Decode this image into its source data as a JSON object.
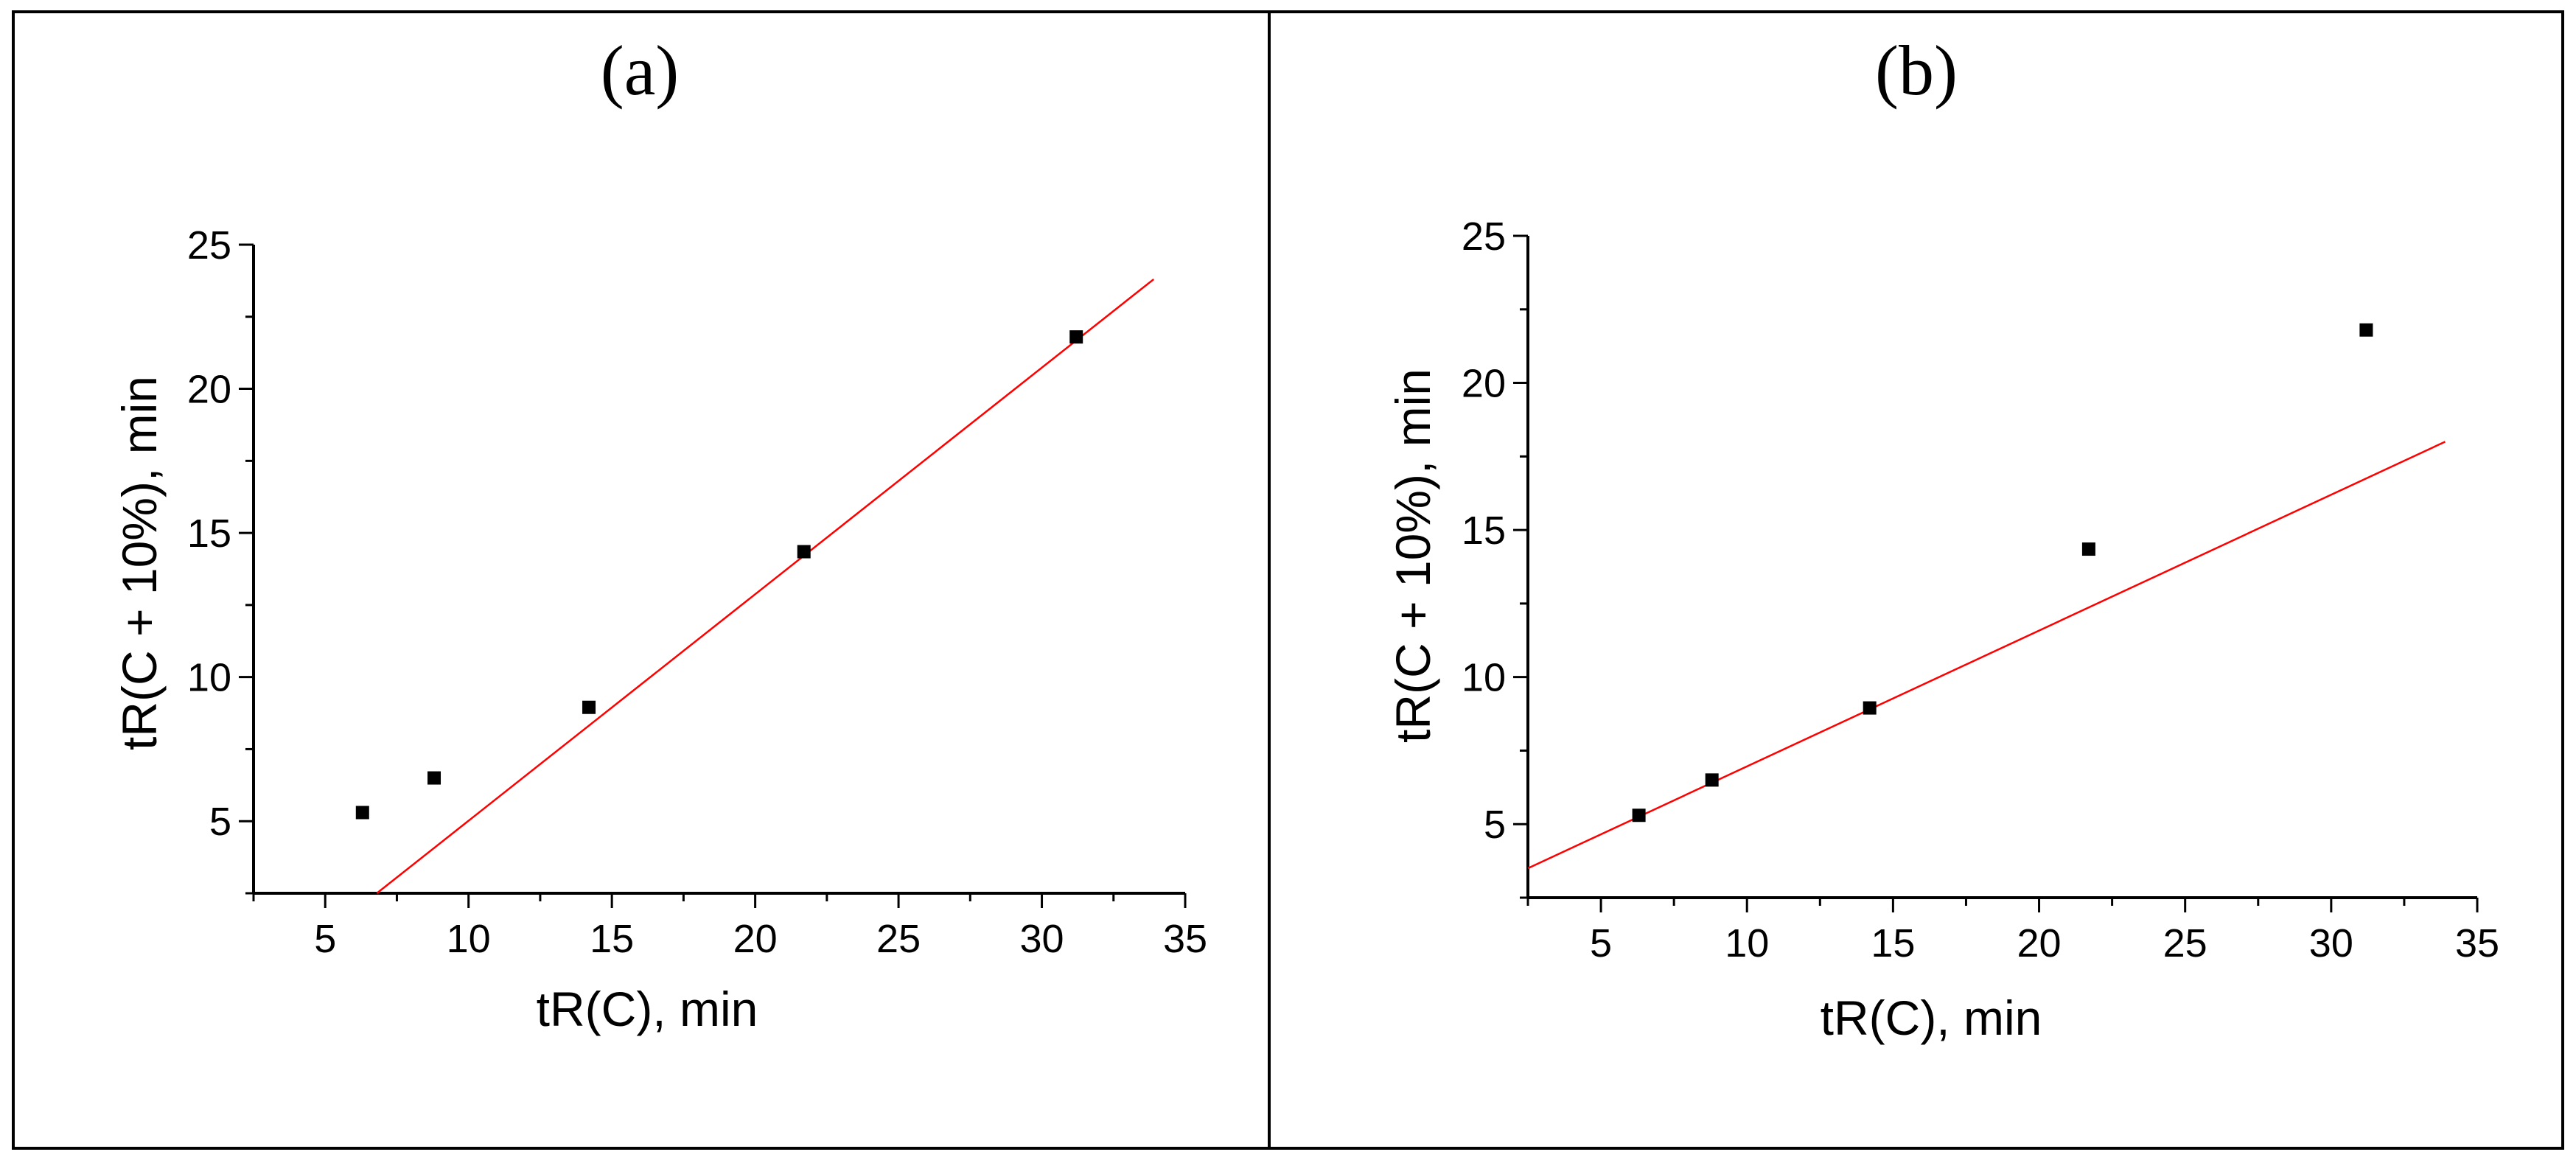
{
  "chart_data": [
    {
      "type": "scatter",
      "panel_label": "(a)",
      "xlabel": "tR(C), min",
      "ylabel": "tR(C + 10%), min",
      "xlim": [
        2.5,
        35
      ],
      "ylim": [
        2.5,
        25
      ],
      "xticks": [
        5,
        10,
        15,
        20,
        25,
        30,
        35
      ],
      "yticks": [
        5,
        10,
        15,
        20,
        25
      ],
      "grid": false,
      "series": [
        {
          "x": [
            6.3,
            8.8,
            14.2,
            21.7,
            31.2
          ],
          "y": [
            5.3,
            6.5,
            8.95,
            14.35,
            21.8
          ],
          "marker": "square",
          "color": "#000000"
        }
      ],
      "fit_line": {
        "x": [
          6.8,
          33.9
        ],
        "y": [
          2.5,
          23.8
        ],
        "color": "#ff0000"
      }
    },
    {
      "type": "scatter",
      "panel_label": "(b)",
      "xlabel": "tR(C), min",
      "ylabel": "tR(C + 10%), min",
      "xlim": [
        2.5,
        35
      ],
      "ylim": [
        2.5,
        25
      ],
      "xticks": [
        5,
        10,
        15,
        20,
        25,
        30,
        35
      ],
      "yticks": [
        5,
        10,
        15,
        20,
        25
      ],
      "grid": false,
      "series": [
        {
          "x": [
            6.3,
            8.8,
            14.2,
            21.7,
            31.2
          ],
          "y": [
            5.3,
            6.5,
            8.95,
            14.35,
            21.8
          ],
          "marker": "square",
          "color": "#000000"
        }
      ],
      "fit_line": {
        "x": [
          2.5,
          33.9
        ],
        "y": [
          3.5,
          18.0
        ],
        "color": "#ff0000"
      }
    }
  ]
}
